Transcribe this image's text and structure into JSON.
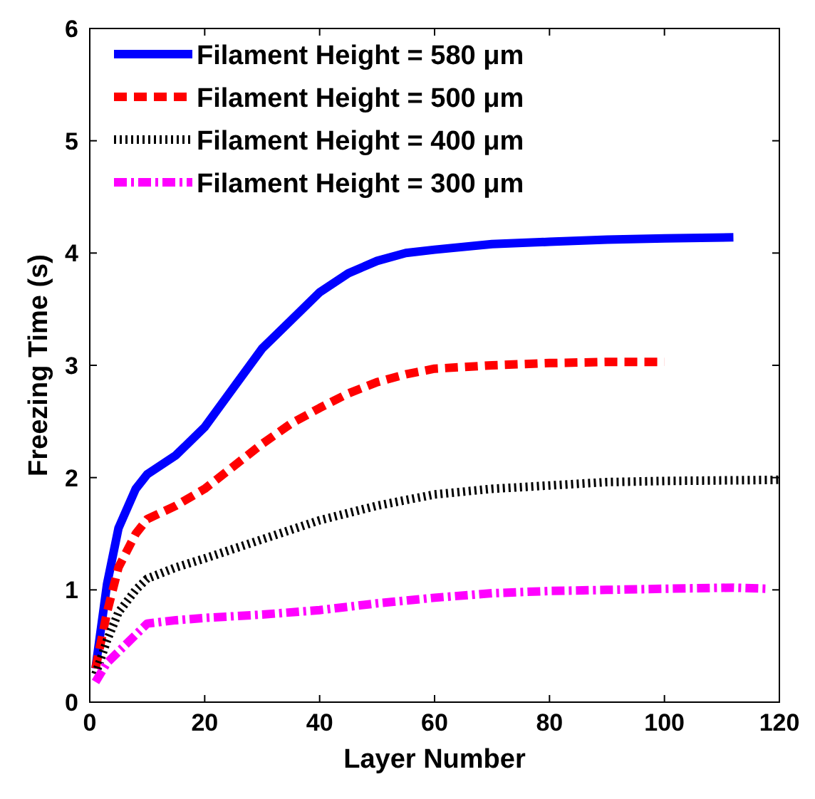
{
  "chart_data": {
    "type": "line",
    "xlabel": "Layer Number",
    "ylabel": "Freezing Time (s)",
    "xlim": [
      0,
      120
    ],
    "xticks": [
      0,
      20,
      40,
      60,
      80,
      100,
      120
    ],
    "ylim": [
      0,
      6
    ],
    "yticks": [
      0,
      1,
      2,
      3,
      4,
      5,
      6
    ],
    "legend": "top left",
    "grid": false,
    "series": [
      {
        "name": "Filament Height = 580 μm",
        "color": "#0000ff",
        "line_style": "solid",
        "x": [
          1,
          3,
          5,
          8,
          10,
          15,
          20,
          25,
          30,
          35,
          40,
          45,
          50,
          55,
          60,
          70,
          80,
          90,
          100,
          112
        ],
        "values": [
          0.3,
          1.05,
          1.55,
          1.9,
          2.03,
          2.2,
          2.45,
          2.8,
          3.15,
          3.4,
          3.65,
          3.82,
          3.93,
          4.0,
          4.03,
          4.08,
          4.1,
          4.12,
          4.13,
          4.14
        ]
      },
      {
        "name": "Filament Height = 500 μm",
        "color": "#ff0000",
        "line_style": "dashed",
        "x": [
          1,
          3,
          5,
          8,
          10,
          15,
          20,
          25,
          30,
          35,
          40,
          45,
          50,
          55,
          60,
          70,
          80,
          90,
          100
        ],
        "values": [
          0.3,
          0.8,
          1.2,
          1.5,
          1.63,
          1.75,
          1.9,
          2.1,
          2.3,
          2.48,
          2.62,
          2.75,
          2.85,
          2.92,
          2.97,
          3.0,
          3.02,
          3.03,
          3.03
        ]
      },
      {
        "name": "Filament Height = 400 μm",
        "color": "#000000",
        "line_style": "dotted",
        "x": [
          1,
          3,
          5,
          8,
          10,
          15,
          20,
          30,
          40,
          50,
          60,
          70,
          80,
          90,
          100,
          120
        ],
        "values": [
          0.25,
          0.55,
          0.8,
          1.0,
          1.1,
          1.2,
          1.28,
          1.45,
          1.62,
          1.75,
          1.85,
          1.9,
          1.93,
          1.96,
          1.97,
          1.98
        ]
      },
      {
        "name": "Filament Height = 300 μm",
        "color": "#ff00ff",
        "line_style": "dashdot",
        "x": [
          1,
          3,
          5,
          8,
          10,
          15,
          20,
          30,
          40,
          50,
          60,
          70,
          80,
          90,
          100,
          112,
          118
        ],
        "values": [
          0.18,
          0.35,
          0.45,
          0.6,
          0.7,
          0.73,
          0.75,
          0.78,
          0.82,
          0.88,
          0.93,
          0.97,
          0.99,
          1.0,
          1.01,
          1.02,
          1.01
        ]
      }
    ]
  }
}
